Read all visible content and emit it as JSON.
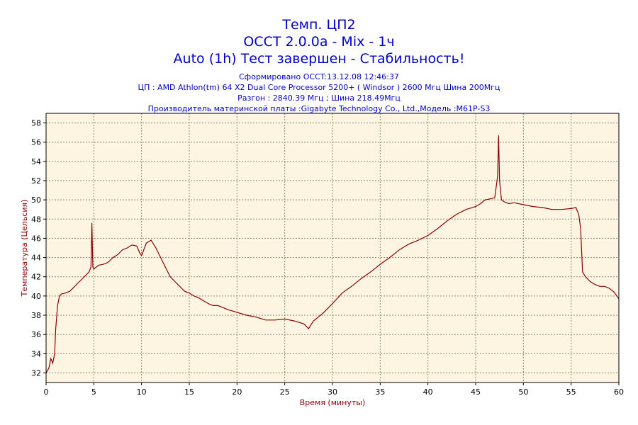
{
  "titles": {
    "line1": "Темп. ЦП2",
    "line2": "OCCT 2.0.0a - Mix - 1ч",
    "line3": "Auto (1h) Тест завершен - Стабильность!"
  },
  "info": {
    "line1": "Сформировано OCCT:13.12.08 12:46:37",
    "line2": "ЦП : AMD Athlon(tm) 64 X2 Dual Core Processor 5200+ ( Windsor ) 2600 Мгц Шина 200Мгц",
    "line3": "Разгон : 2840.39 Мгц ; Шина 218.49Мгц",
    "line4": "Производитель материнской платы :Gigabyte Technology Co., Ltd.,Модель :M61P-S3"
  },
  "colors": {
    "line": "#8b0000",
    "plot_background": "#fdf5e2",
    "grid": "#8a8a6a",
    "title": "#0000cc",
    "axis_label": "#8b0000"
  },
  "chart_data": {
    "type": "line",
    "xlabel": "Время (минуты)",
    "ylabel": "Температура (Цельсия)",
    "xlim": [
      0,
      60
    ],
    "ylim": [
      31,
      59
    ],
    "xticks": [
      0,
      5,
      10,
      15,
      20,
      25,
      30,
      35,
      40,
      45,
      50,
      55,
      60
    ],
    "yticks": [
      32,
      34,
      36,
      38,
      40,
      42,
      44,
      46,
      48,
      50,
      52,
      54,
      56,
      58
    ],
    "grid": true,
    "series": [
      {
        "x": [
          0,
          0.3,
          0.5,
          0.7,
          0.9,
          1.0,
          1.2,
          1.4,
          1.6,
          2.0,
          2.5,
          3.0,
          3.5,
          4.0,
          4.5,
          4.7,
          4.8,
          4.9,
          5.0,
          5.5,
          6.0,
          6.5,
          7.0,
          7.5,
          8.0,
          8.5,
          9.0,
          9.5,
          9.8,
          10.0,
          10.5,
          11.0,
          11.5,
          12.0,
          12.5,
          13.0,
          13.5,
          14.0,
          14.5,
          15.0,
          15.5,
          16.0,
          16.5,
          17.0,
          17.5,
          18.0,
          18.5,
          19.0,
          20.0,
          21.0,
          22.0,
          23.0,
          24.0,
          25.0,
          26.0,
          27.0,
          27.5,
          28.0,
          29.0,
          30.0,
          31.0,
          32.0,
          33.0,
          34.0,
          35.0,
          36.0,
          37.0,
          38.0,
          39.0,
          40.0,
          41.0,
          42.0,
          43.0,
          44.0,
          45.0,
          45.5,
          46.0,
          46.5,
          47.0,
          47.3,
          47.4,
          47.5,
          47.7,
          48.0,
          48.5,
          49.0,
          50.0,
          51.0,
          52.0,
          53.0,
          54.0,
          55.0,
          55.5,
          55.8,
          56.0,
          56.2,
          56.5,
          57.0,
          57.5,
          58.0,
          58.5,
          59.0,
          59.5,
          60.0
        ],
        "y": [
          32.0,
          32.5,
          33.5,
          33.0,
          34.0,
          36.5,
          39.0,
          40.0,
          40.2,
          40.3,
          40.5,
          41.0,
          41.5,
          42.0,
          42.5,
          43.0,
          47.6,
          43.0,
          42.8,
          43.2,
          43.3,
          43.5,
          44.0,
          44.3,
          44.8,
          45.0,
          45.3,
          45.2,
          44.5,
          44.2,
          45.5,
          45.8,
          45.0,
          44.0,
          43.0,
          42.0,
          41.5,
          41.0,
          40.5,
          40.3,
          40.0,
          39.8,
          39.5,
          39.2,
          39.0,
          39.0,
          38.8,
          38.6,
          38.3,
          38.0,
          37.8,
          37.5,
          37.5,
          37.6,
          37.4,
          37.1,
          36.6,
          37.4,
          38.2,
          39.2,
          40.3,
          41.0,
          41.8,
          42.5,
          43.3,
          44.0,
          44.8,
          45.4,
          45.8,
          46.3,
          47.0,
          47.8,
          48.5,
          49.0,
          49.3,
          49.6,
          50.0,
          50.1,
          50.2,
          52.5,
          56.7,
          52.0,
          50.0,
          49.8,
          49.6,
          49.7,
          49.5,
          49.3,
          49.2,
          49.0,
          49.0,
          49.1,
          49.2,
          48.5,
          47.0,
          42.5,
          42.0,
          41.5,
          41.2,
          41.0,
          41.0,
          40.8,
          40.4,
          39.7
        ]
      }
    ]
  }
}
